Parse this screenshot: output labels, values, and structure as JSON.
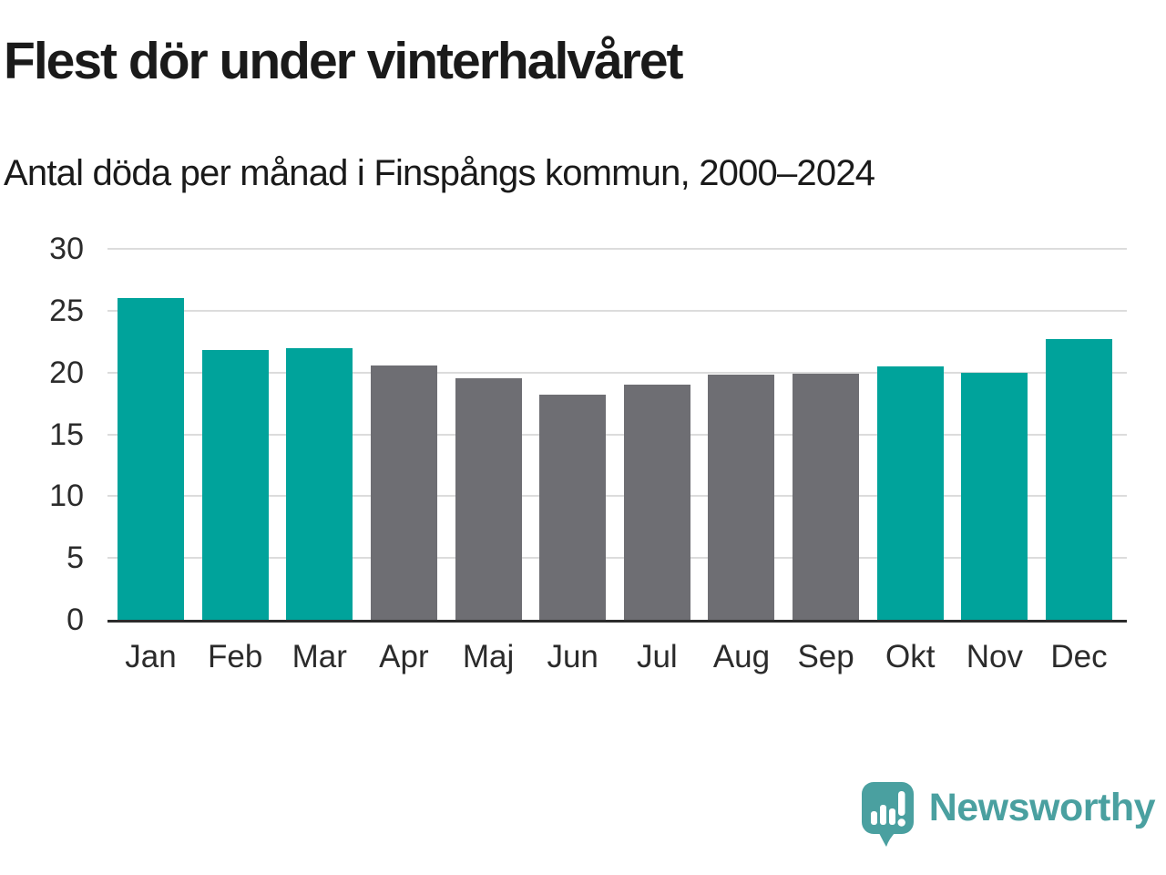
{
  "header": {
    "title": "Flest dör under vinterhalvåret",
    "subtitle": "Antal döda per månad i Finspångs kommun, 2000–2024"
  },
  "chart_data": {
    "type": "bar",
    "title": "Flest dör under vinterhalvåret",
    "subtitle": "Antal döda per månad i Finspångs kommun, 2000–2024",
    "categories": [
      "Jan",
      "Feb",
      "Mar",
      "Apr",
      "Maj",
      "Jun",
      "Jul",
      "Aug",
      "Sep",
      "Okt",
      "Nov",
      "Dec"
    ],
    "values": [
      26.0,
      21.8,
      22.0,
      20.6,
      19.5,
      18.2,
      19.0,
      19.8,
      19.9,
      20.5,
      20.0,
      22.7
    ],
    "highlighted": [
      true,
      true,
      true,
      false,
      false,
      false,
      false,
      false,
      false,
      true,
      true,
      true
    ],
    "xlabel": "",
    "ylabel": "",
    "ylim": [
      0,
      30
    ],
    "yticks": [
      0,
      5,
      10,
      15,
      20,
      25,
      30
    ],
    "grid": true,
    "legend": "none",
    "colors": {
      "highlight_bar": "#00a39b",
      "base_bar": "#6e6e73",
      "gridline": "#dcdcdc",
      "axis_line": "#2b2b2b",
      "text": "#1a1a1a"
    }
  },
  "footer": {
    "brand": "Newsworthy",
    "brand_color": "#4aa0a0",
    "logo_icon": "bar-chart-speech-bubble-icon"
  }
}
